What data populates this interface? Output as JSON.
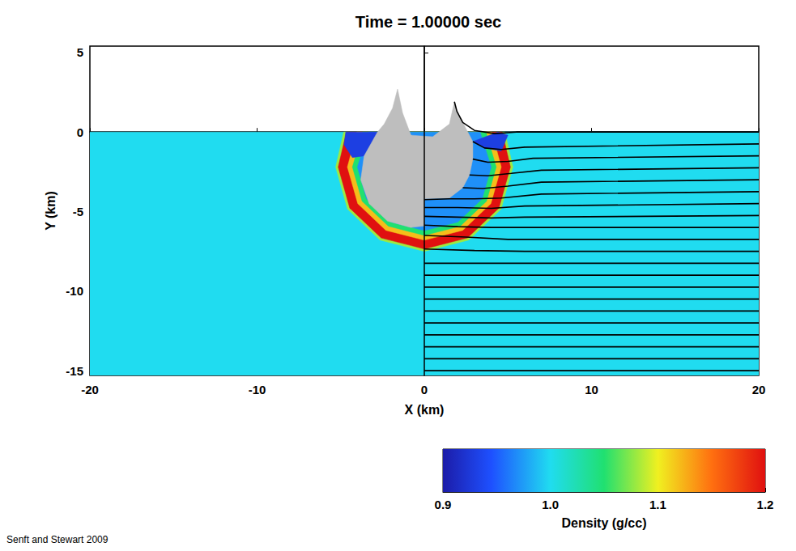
{
  "chart_data": {
    "type": "region_map",
    "title": "Time = 1.00000 sec",
    "x_label": "X (km)",
    "y_label": "Y (km)",
    "xlim": [
      -20,
      20
    ],
    "ylim": [
      -15.3,
      5.4
    ],
    "xticks": [
      -20,
      -10,
      0,
      10,
      20
    ],
    "yticks": [
      5,
      0,
      -5,
      -10,
      -15
    ],
    "grid": false,
    "regions": [
      {
        "density": 1.0,
        "polygon": [
          [
            -20,
            0
          ],
          [
            20,
            0
          ],
          [
            20,
            -15.3
          ],
          [
            -20,
            -15.3
          ]
        ]
      },
      {
        "density": 1.08,
        "polygon": [
          [
            -4.82,
            0
          ],
          [
            -5.3,
            -2.2
          ],
          [
            -4.59,
            -4.85
          ],
          [
            -2.65,
            -6.79
          ],
          [
            0,
            -7.5
          ],
          [
            2.65,
            -6.79
          ],
          [
            4.59,
            -4.85
          ],
          [
            5.3,
            -2.2
          ],
          [
            4.82,
            0
          ]
        ]
      },
      {
        "density": 1.2,
        "polygon": [
          [
            -4.66,
            0
          ],
          [
            -5.15,
            -2.2
          ],
          [
            -4.46,
            -4.78
          ],
          [
            -2.58,
            -6.66
          ],
          [
            0,
            -7.35
          ],
          [
            2.58,
            -6.66
          ],
          [
            4.46,
            -4.78
          ],
          [
            5.15,
            -2.2
          ],
          [
            4.66,
            0
          ]
        ]
      },
      {
        "density": 1.12,
        "polygon": [
          [
            -4.04,
            0
          ],
          [
            -4.6,
            -2.2
          ],
          [
            -3.98,
            -4.5
          ],
          [
            -2.3,
            -6.18
          ],
          [
            0,
            -6.8
          ],
          [
            2.3,
            -6.18
          ],
          [
            3.98,
            -4.5
          ],
          [
            4.6,
            -2.2
          ],
          [
            4.04,
            0
          ]
        ]
      },
      {
        "density": 1.05,
        "polygon": [
          [
            -3.69,
            0
          ],
          [
            -4.3,
            -2.2
          ],
          [
            -3.72,
            -4.35
          ],
          [
            -2.15,
            -5.92
          ],
          [
            0,
            -6.5
          ],
          [
            2.15,
            -5.92
          ],
          [
            3.72,
            -4.35
          ],
          [
            4.3,
            -2.2
          ],
          [
            3.69,
            0
          ]
        ]
      },
      {
        "density": 0.97,
        "polygon": [
          [
            -3.34,
            0
          ],
          [
            -4.0,
            -2.2
          ],
          [
            -3.46,
            -4.2
          ],
          [
            -2.0,
            -5.66
          ],
          [
            0,
            -6.2
          ],
          [
            2.0,
            -5.66
          ],
          [
            3.46,
            -4.2
          ],
          [
            4.0,
            -2.2
          ],
          [
            3.34,
            0
          ]
        ]
      },
      {
        "density": 0.93,
        "polygon": [
          [
            -4.7,
            0
          ],
          [
            -2.8,
            0
          ],
          [
            -3.6,
            -1.5
          ],
          [
            -4.3,
            -1.6
          ],
          [
            -4.8,
            -0.8
          ]
        ]
      },
      {
        "density": 0.93,
        "polygon": [
          [
            2.9,
            -0.6
          ],
          [
            4.4,
            0
          ],
          [
            5.0,
            -0.2
          ],
          [
            4.6,
            -1.2
          ],
          [
            3.6,
            -1.0
          ]
        ]
      },
      {
        "color": "#bebebe",
        "polygon": [
          [
            -1.6,
            2.7
          ],
          [
            -1.9,
            1.5
          ],
          [
            -2.4,
            0.5
          ],
          [
            -2.8,
            0
          ],
          [
            -3.6,
            -1.5
          ],
          [
            -3.8,
            -3
          ],
          [
            -3.3,
            -4.5
          ],
          [
            -2.2,
            -5.6
          ],
          [
            -0.8,
            -6.0
          ],
          [
            0,
            -5.9
          ],
          [
            0,
            -4.2
          ],
          [
            1.5,
            -4.15
          ],
          [
            2.3,
            -3.5
          ],
          [
            2.7,
            -2.7
          ],
          [
            2.9,
            -1.7
          ],
          [
            2.9,
            -0.6
          ],
          [
            2.3,
            0.6
          ],
          [
            1.95,
            1.3
          ],
          [
            1.8,
            1.9
          ],
          [
            1.5,
            0.5
          ],
          [
            0.5,
            -0.3
          ],
          [
            -0.8,
            -0.2
          ],
          [
            -1.3,
            1.2
          ]
        ]
      }
    ],
    "divider_x": 0,
    "tracer_lines": {
      "color": "#000000",
      "lines": [
        [
          [
            1.8,
            1.9
          ],
          [
            1.95,
            1.3
          ],
          [
            2.3,
            0.6
          ],
          [
            3.0,
            0.1
          ],
          [
            4.2,
            -0.1
          ],
          [
            5.5,
            0
          ],
          [
            20,
            0
          ]
        ],
        [
          [
            2.9,
            -0.6
          ],
          [
            3.6,
            -1.0
          ],
          [
            4.6,
            -1.1
          ],
          [
            6,
            -0.95
          ],
          [
            20,
            -0.75
          ]
        ],
        [
          [
            2.9,
            -1.7
          ],
          [
            3.8,
            -1.9
          ],
          [
            5,
            -1.85
          ],
          [
            6.5,
            -1.65
          ],
          [
            20,
            -1.5
          ]
        ],
        [
          [
            2.7,
            -2.7
          ],
          [
            3.8,
            -2.75
          ],
          [
            5.2,
            -2.6
          ],
          [
            7,
            -2.4
          ],
          [
            20,
            -2.25
          ]
        ],
        [
          [
            2.3,
            -3.5
          ],
          [
            3.5,
            -3.55
          ],
          [
            5,
            -3.4
          ],
          [
            7,
            -3.15
          ],
          [
            20,
            -3.0
          ]
        ],
        [
          [
            0,
            -4.25
          ],
          [
            1.5,
            -4.2
          ],
          [
            3,
            -4.2
          ],
          [
            4.6,
            -4.15
          ],
          [
            7,
            -3.9
          ],
          [
            20,
            -3.75
          ]
        ],
        [
          [
            0,
            -4.75
          ],
          [
            2,
            -4.75
          ],
          [
            4,
            -4.8
          ],
          [
            6,
            -4.65
          ],
          [
            20,
            -4.5
          ]
        ],
        [
          [
            0,
            -5.3
          ],
          [
            2,
            -5.35
          ],
          [
            4,
            -5.4
          ],
          [
            6,
            -5.35
          ],
          [
            20,
            -5.25
          ]
        ],
        [
          [
            0,
            -5.85
          ],
          [
            2,
            -5.95
          ],
          [
            4,
            -6.0
          ],
          [
            20,
            -6.0
          ]
        ],
        [
          [
            0,
            -6.5
          ],
          [
            2.5,
            -6.6
          ],
          [
            5,
            -6.75
          ],
          [
            20,
            -6.75
          ]
        ],
        [
          [
            0,
            -7.35
          ],
          [
            3,
            -7.45
          ],
          [
            6,
            -7.5
          ],
          [
            20,
            -7.5
          ]
        ],
        [
          [
            0,
            -8.25
          ],
          [
            20,
            -8.25
          ]
        ],
        [
          [
            0,
            -9.0
          ],
          [
            20,
            -9.0
          ]
        ],
        [
          [
            0,
            -9.75
          ],
          [
            20,
            -9.75
          ]
        ],
        [
          [
            0,
            -10.5
          ],
          [
            20,
            -10.5
          ]
        ],
        [
          [
            0,
            -11.25
          ],
          [
            20,
            -11.25
          ]
        ],
        [
          [
            0,
            -12.0
          ],
          [
            20,
            -12.0
          ]
        ],
        [
          [
            0,
            -12.75
          ],
          [
            20,
            -12.75
          ]
        ],
        [
          [
            0,
            -13.5
          ],
          [
            20,
            -13.5
          ]
        ],
        [
          [
            0,
            -14.25
          ],
          [
            20,
            -14.25
          ]
        ],
        [
          [
            0,
            -15.0
          ],
          [
            20,
            -15.0
          ]
        ]
      ]
    },
    "colorbar": {
      "label": "Density (g/cc)",
      "range": [
        0.9,
        1.2
      ],
      "ticks": [
        0.9,
        {
          "value": 1.0,
          "label": "1.0"
        },
        1.1,
        1.2
      ]
    },
    "credit": "Senft and Stewart 2009"
  }
}
